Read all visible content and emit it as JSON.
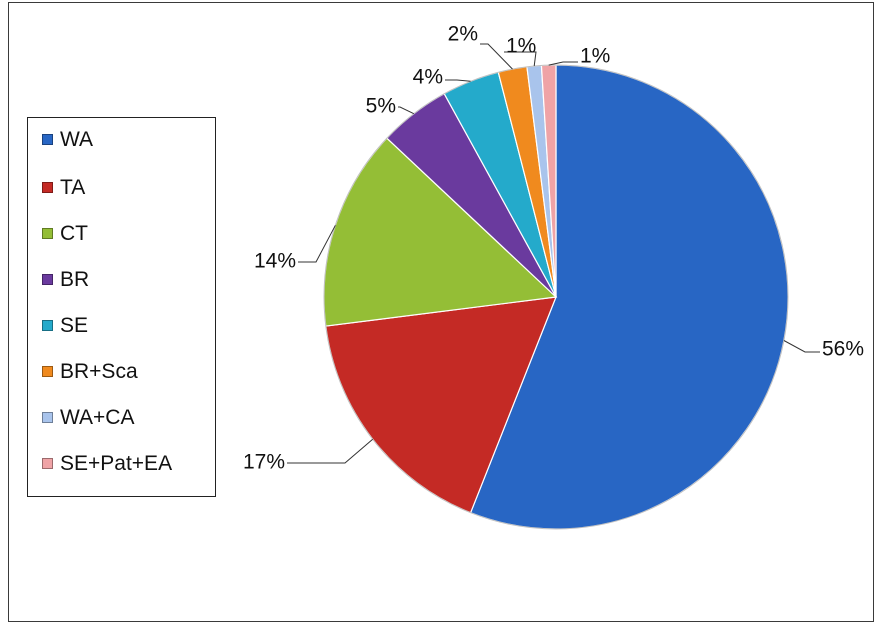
{
  "chart_data": {
    "type": "pie",
    "title": "",
    "legend_position": "left",
    "slices": [
      {
        "name": "WA",
        "value": 56,
        "label": "56%",
        "color": "#2866C4"
      },
      {
        "name": "TA",
        "value": 17,
        "label": "17%",
        "color": "#C42A25"
      },
      {
        "name": "CT",
        "value": 14,
        "label": "14%",
        "color": "#94BE36"
      },
      {
        "name": "BR",
        "value": 5,
        "label": "5%",
        "color": "#6A3A9E"
      },
      {
        "name": "SE",
        "value": 4,
        "label": "4%",
        "color": "#24AACB"
      },
      {
        "name": "BR+Sca",
        "value": 2,
        "label": "2%",
        "color": "#F08A1E"
      },
      {
        "name": "WA+CA",
        "value": 1,
        "label": "1%",
        "color": "#A9C4EC"
      },
      {
        "name": "SE+Pat+EA",
        "value": 1,
        "label": "1%",
        "color": "#EFA3A6"
      }
    ]
  }
}
